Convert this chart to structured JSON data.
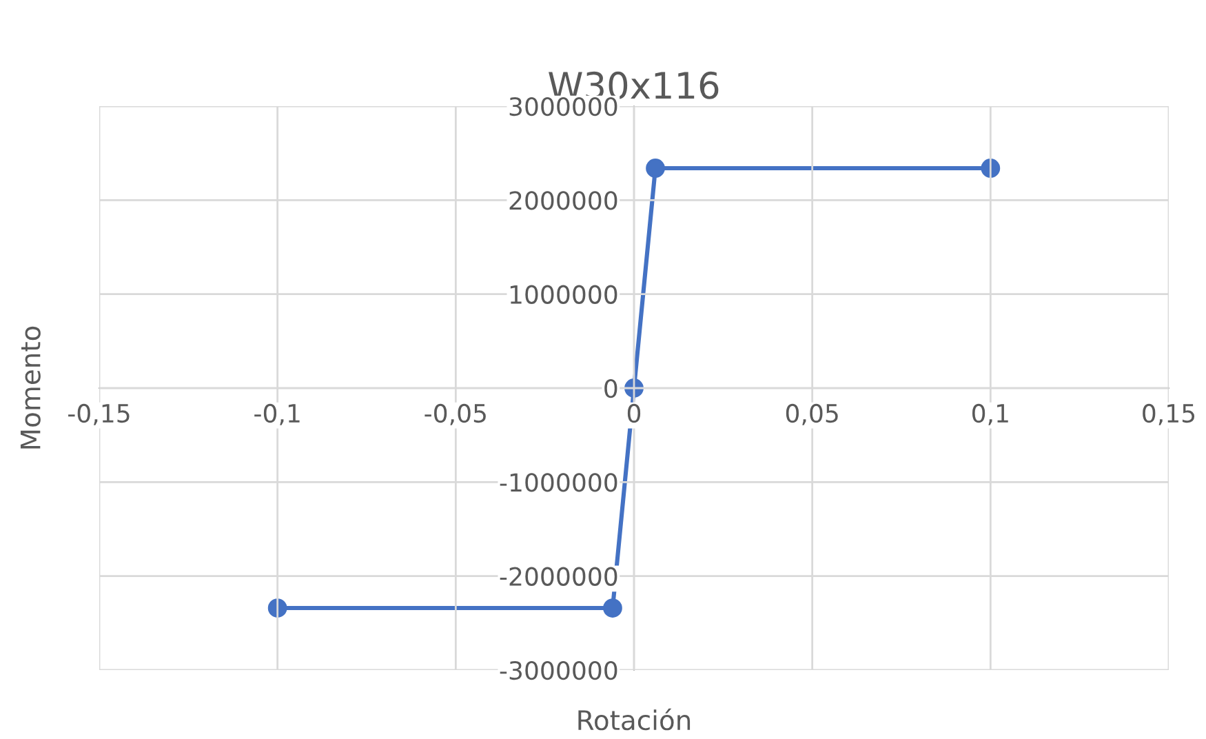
{
  "chart_data": {
    "type": "line",
    "title": "W30x116",
    "xlabel": "Rotación",
    "ylabel": "Momento",
    "x": [
      -0.1,
      -0.006,
      0,
      0.006,
      0.1
    ],
    "series": [
      {
        "color": "#4472c4",
        "values": [
          -2340000,
          -2340000,
          0,
          2340000,
          2340000
        ]
      }
    ],
    "xlim": [
      -0.15,
      0.15
    ],
    "ylim": [
      -3000000,
      3000000
    ],
    "xticks": [
      {
        "value": -0.15,
        "label": "-0,15"
      },
      {
        "value": -0.1,
        "label": "-0,1"
      },
      {
        "value": -0.05,
        "label": "-0,05"
      },
      0,
      {
        "value": 0.05,
        "label": "0,05"
      },
      {
        "value": 0.1,
        "label": "0,1"
      },
      {
        "value": 0.15,
        "label": "0,15"
      }
    ],
    "yticks": [
      -3000000,
      -2000000,
      -1000000,
      0,
      1000000,
      2000000,
      3000000
    ],
    "grid": true,
    "marker": "circle",
    "line_style": "solid",
    "legend": false
  }
}
